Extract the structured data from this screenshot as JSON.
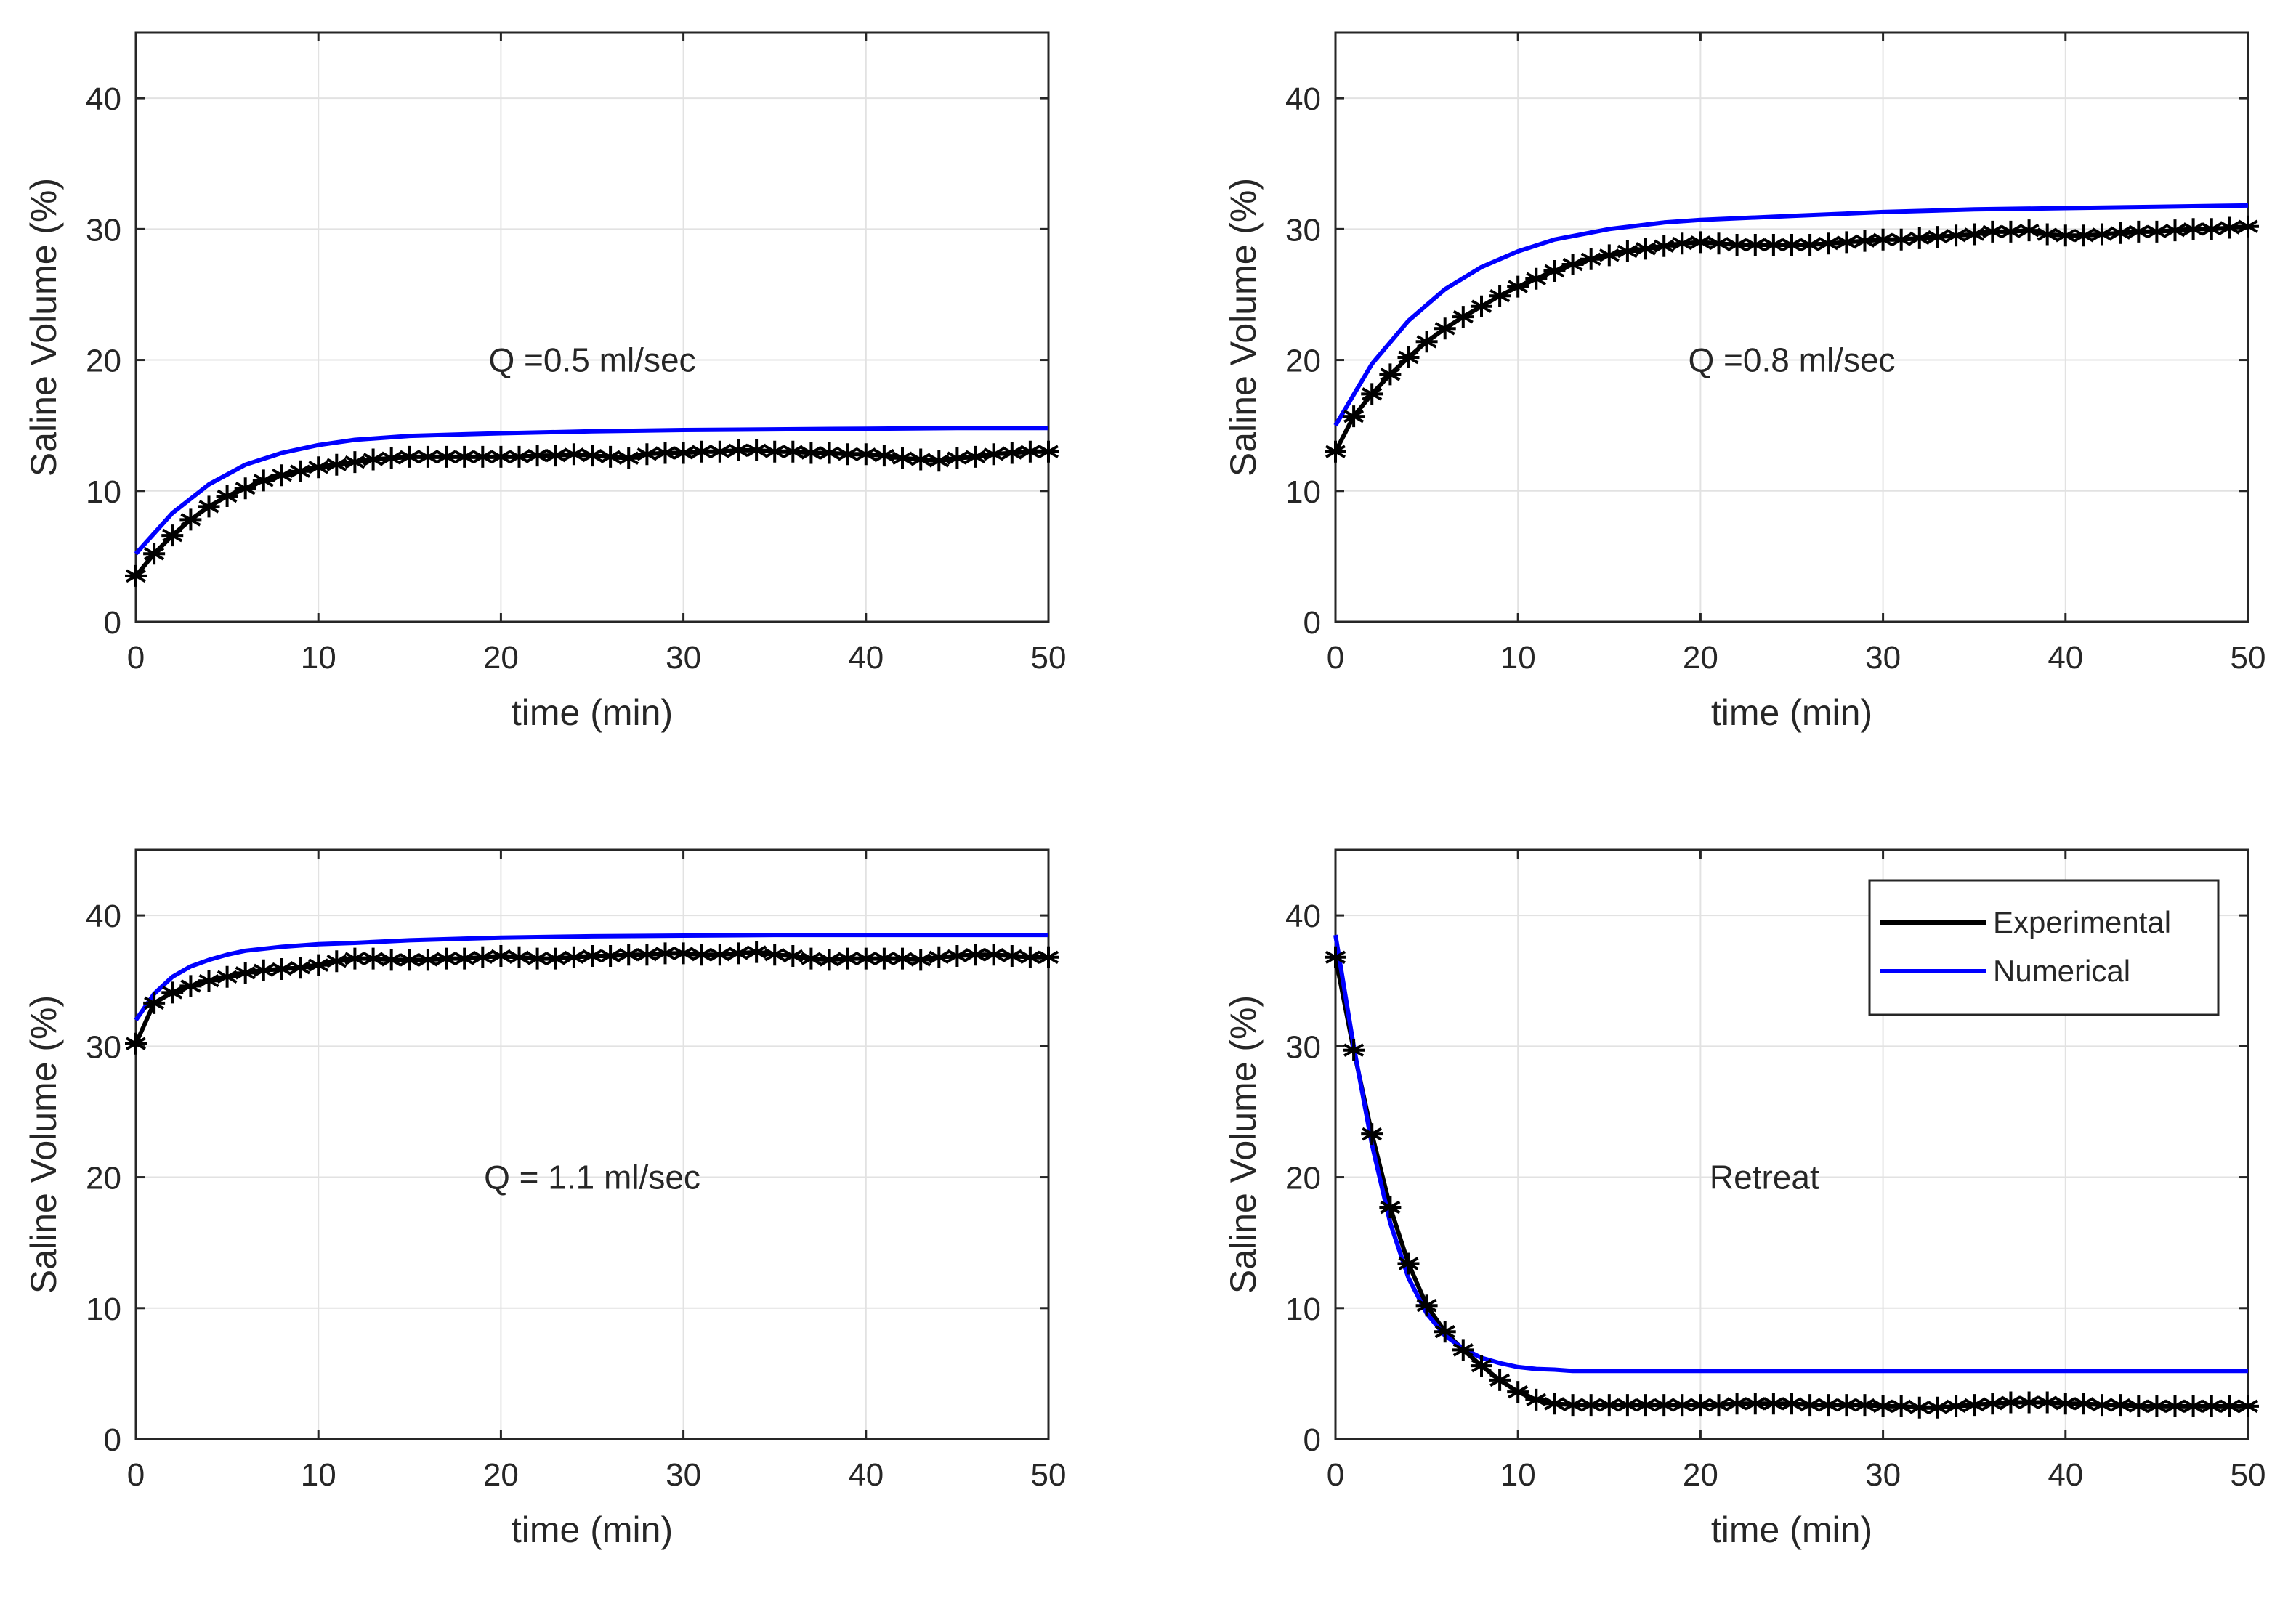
{
  "colors": {
    "experimental": "#000000",
    "numerical": "#0000ff",
    "grid": "#e2e2e2",
    "axis": "#262626"
  },
  "legend": {
    "experimental": "Experimental",
    "numerical": "Numerical"
  },
  "chart_data": [
    {
      "type": "line",
      "annotation": "Q =0.5 ml/sec",
      "xlabel": "time (min)",
      "ylabel": "Saline Volume (%)",
      "xlim": [
        0,
        50
      ],
      "ylim": [
        0,
        45
      ],
      "xticks": [
        0,
        10,
        20,
        30,
        40,
        50
      ],
      "yticks": [
        0,
        10,
        20,
        30,
        40
      ],
      "grid": true,
      "series": [
        {
          "name": "Numerical",
          "x": [
            0,
            2,
            4,
            6,
            8,
            10,
            12,
            15,
            20,
            25,
            30,
            35,
            40,
            45,
            50
          ],
          "y": [
            5.2,
            8.3,
            10.5,
            12.0,
            12.9,
            13.5,
            13.9,
            14.2,
            14.4,
            14.55,
            14.65,
            14.7,
            14.75,
            14.8,
            14.8
          ]
        },
        {
          "name": "Experimental",
          "x": [
            0,
            1,
            2,
            3,
            4,
            5,
            6,
            7,
            8,
            9,
            10,
            11,
            12,
            13,
            14,
            15,
            16,
            17,
            18,
            19,
            20,
            21,
            22,
            23,
            24,
            25,
            26,
            27,
            28,
            29,
            30,
            31,
            32,
            33,
            34,
            35,
            36,
            37,
            38,
            39,
            40,
            41,
            42,
            43,
            44,
            45,
            46,
            47,
            48,
            49,
            50
          ],
          "y": [
            3.5,
            5.2,
            6.6,
            7.8,
            8.8,
            9.6,
            10.2,
            10.8,
            11.2,
            11.5,
            11.8,
            12.0,
            12.2,
            12.4,
            12.5,
            12.6,
            12.6,
            12.6,
            12.6,
            12.6,
            12.6,
            12.6,
            12.7,
            12.7,
            12.8,
            12.7,
            12.6,
            12.5,
            12.8,
            12.9,
            12.9,
            13.0,
            13.0,
            13.1,
            13.1,
            13.0,
            13.0,
            12.9,
            12.9,
            12.8,
            12.8,
            12.7,
            12.5,
            12.4,
            12.3,
            12.5,
            12.6,
            12.8,
            12.9,
            13.0,
            13.0
          ]
        }
      ]
    },
    {
      "type": "line",
      "annotation": "Q =0.8 ml/sec",
      "xlabel": "time (min)",
      "ylabel": "Saline Volume (%)",
      "xlim": [
        0,
        50
      ],
      "ylim": [
        0,
        45
      ],
      "xticks": [
        0,
        10,
        20,
        30,
        40,
        50
      ],
      "yticks": [
        0,
        10,
        20,
        30,
        40
      ],
      "grid": true,
      "series": [
        {
          "name": "Numerical",
          "x": [
            0,
            2,
            4,
            6,
            8,
            10,
            12,
            15,
            18,
            20,
            25,
            30,
            35,
            40,
            45,
            50
          ],
          "y": [
            15.0,
            19.7,
            23.0,
            25.4,
            27.1,
            28.3,
            29.2,
            30.0,
            30.5,
            30.7,
            31.0,
            31.3,
            31.5,
            31.6,
            31.7,
            31.8
          ]
        },
        {
          "name": "Experimental",
          "x": [
            0,
            1,
            2,
            3,
            4,
            5,
            6,
            7,
            8,
            9,
            10,
            11,
            12,
            13,
            14,
            15,
            16,
            17,
            18,
            19,
            20,
            21,
            22,
            23,
            24,
            25,
            26,
            27,
            28,
            29,
            30,
            31,
            32,
            33,
            34,
            35,
            36,
            37,
            38,
            39,
            40,
            41,
            42,
            43,
            44,
            45,
            46,
            47,
            48,
            49,
            50
          ],
          "y": [
            13.0,
            15.7,
            17.4,
            18.9,
            20.2,
            21.4,
            22.4,
            23.3,
            24.1,
            24.9,
            25.6,
            26.2,
            26.8,
            27.3,
            27.7,
            28.0,
            28.3,
            28.5,
            28.7,
            28.9,
            29.0,
            28.9,
            28.8,
            28.8,
            28.8,
            28.8,
            28.8,
            28.9,
            29.0,
            29.1,
            29.2,
            29.2,
            29.3,
            29.4,
            29.5,
            29.6,
            29.8,
            29.8,
            29.9,
            29.6,
            29.5,
            29.5,
            29.6,
            29.7,
            29.8,
            29.8,
            29.9,
            30.0,
            30.0,
            30.1,
            30.2
          ]
        }
      ]
    },
    {
      "type": "line",
      "annotation": "Q = 1.1 ml/sec",
      "xlabel": "time (min)",
      "ylabel": "Saline Volume (%)",
      "xlim": [
        0,
        50
      ],
      "ylim": [
        0,
        45
      ],
      "xticks": [
        0,
        10,
        20,
        30,
        40,
        50
      ],
      "yticks": [
        0,
        10,
        20,
        30,
        40
      ],
      "grid": true,
      "series": [
        {
          "name": "Numerical",
          "x": [
            0,
            1,
            2,
            3,
            4,
            5,
            6,
            8,
            10,
            12,
            15,
            20,
            25,
            30,
            35,
            40,
            45,
            50
          ],
          "y": [
            32.0,
            34.0,
            35.3,
            36.1,
            36.6,
            37.0,
            37.3,
            37.6,
            37.8,
            37.9,
            38.1,
            38.3,
            38.4,
            38.45,
            38.5,
            38.5,
            38.5,
            38.5
          ]
        },
        {
          "name": "Experimental",
          "x": [
            0,
            1,
            2,
            3,
            4,
            5,
            6,
            7,
            8,
            9,
            10,
            11,
            12,
            13,
            14,
            15,
            16,
            17,
            18,
            19,
            20,
            21,
            22,
            23,
            24,
            25,
            26,
            27,
            28,
            29,
            30,
            31,
            32,
            33,
            34,
            35,
            36,
            37,
            38,
            39,
            40,
            41,
            42,
            43,
            44,
            45,
            46,
            47,
            48,
            49,
            50
          ],
          "y": [
            30.2,
            33.3,
            34.1,
            34.6,
            35.0,
            35.3,
            35.6,
            35.8,
            35.9,
            36.0,
            36.2,
            36.5,
            36.7,
            36.7,
            36.6,
            36.6,
            36.6,
            36.7,
            36.7,
            36.8,
            36.9,
            36.8,
            36.7,
            36.7,
            36.8,
            36.9,
            36.9,
            37.0,
            37.0,
            37.1,
            37.1,
            37.0,
            37.0,
            37.1,
            37.2,
            37.0,
            36.9,
            36.7,
            36.6,
            36.7,
            36.7,
            36.7,
            36.7,
            36.6,
            36.8,
            36.9,
            37.0,
            37.0,
            36.9,
            36.8,
            36.8
          ]
        }
      ]
    },
    {
      "type": "line",
      "annotation": "Retreat",
      "xlabel": "time (min)",
      "ylabel": "Saline Volume (%)",
      "xlim": [
        0,
        50
      ],
      "ylim": [
        0,
        45
      ],
      "xticks": [
        0,
        10,
        20,
        30,
        40,
        50
      ],
      "yticks": [
        0,
        10,
        20,
        30,
        40
      ],
      "grid": true,
      "legend_position": "top-right",
      "series": [
        {
          "name": "Numerical",
          "x": [
            0,
            1,
            2,
            3,
            4,
            5,
            6,
            7,
            8,
            9,
            10,
            11,
            12,
            13,
            15,
            20,
            25,
            30,
            35,
            40,
            45,
            50
          ],
          "y": [
            38.5,
            30.0,
            22.5,
            16.5,
            12.3,
            9.6,
            7.9,
            6.9,
            6.2,
            5.8,
            5.5,
            5.35,
            5.3,
            5.2,
            5.2,
            5.2,
            5.2,
            5.2,
            5.2,
            5.2,
            5.2,
            5.2
          ]
        },
        {
          "name": "Experimental",
          "x": [
            0,
            1,
            2,
            3,
            4,
            5,
            6,
            7,
            8,
            9,
            10,
            11,
            12,
            13,
            14,
            15,
            16,
            17,
            18,
            19,
            20,
            21,
            22,
            23,
            24,
            25,
            26,
            27,
            28,
            29,
            30,
            31,
            32,
            33,
            34,
            35,
            36,
            37,
            38,
            39,
            40,
            41,
            42,
            43,
            44,
            45,
            46,
            47,
            48,
            49,
            50
          ],
          "y": [
            36.8,
            29.7,
            23.3,
            17.7,
            13.4,
            10.2,
            8.2,
            6.8,
            5.6,
            4.5,
            3.6,
            3.0,
            2.7,
            2.6,
            2.6,
            2.6,
            2.6,
            2.6,
            2.6,
            2.6,
            2.6,
            2.6,
            2.7,
            2.7,
            2.7,
            2.7,
            2.6,
            2.6,
            2.6,
            2.6,
            2.5,
            2.5,
            2.4,
            2.4,
            2.5,
            2.6,
            2.7,
            2.8,
            2.8,
            2.8,
            2.7,
            2.7,
            2.6,
            2.6,
            2.5,
            2.5,
            2.5,
            2.5,
            2.5,
            2.5,
            2.5
          ]
        }
      ]
    }
  ]
}
